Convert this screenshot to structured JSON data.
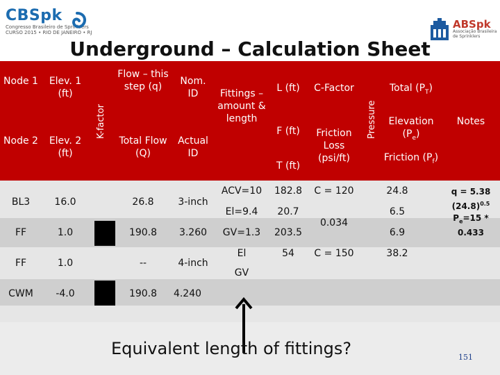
{
  "logos": {
    "left": {
      "brand": "CBSpk",
      "sub1": "Congresso Brasileiro de Sprinklers",
      "sub2": "CURSO 2015 • RIO DE JANEIRO • RJ"
    },
    "right": {
      "brand": "ABSpk",
      "sub": "Associação Brasileira de Sprinklers"
    }
  },
  "title": "Underground – Calculation Sheet",
  "header": {
    "node1": "Node 1",
    "elev1": "Elev. 1 (ft)",
    "node2": "Node 2",
    "elev2": "Elev. 2 (ft)",
    "kfactor": "K-factor",
    "flow_step": "Flow – this step (q)",
    "total_flow": "Total Flow (Q)",
    "nom_id": "Nom. ID",
    "actual_id": "Actual ID",
    "fittings": "Fittings – amount & length",
    "l_ft": "L (ft)",
    "f_ft": "F (ft)",
    "t_ft": "T (ft)",
    "c_factor": "C-Factor",
    "friction_loss": "Friction Loss (psi/ft)",
    "pressure": "Pressure",
    "total_pt": "Total (P",
    "total_pt_sub": "T",
    "elevation_pe": "Elevation (P",
    "elevation_pe_sub": "e",
    "friction_pf": "Friction (P",
    "friction_pf_sub": "f",
    "notes": "Notes"
  },
  "rows": {
    "r1": {
      "node": "BL3",
      "elev": "16.0",
      "flow": "26.8",
      "nom": "3-inch",
      "fit1": "ACV=10",
      "fit2": "El=9.4",
      "l": "182.8",
      "f": "20.7",
      "c": "C = 120",
      "pt": "24.8",
      "pe": "6.5"
    },
    "r2": {
      "node": "FF",
      "elev": "1.0",
      "total_flow": "190.8",
      "actual": "3.260",
      "fit": "GV=1.3",
      "t": "203.5",
      "fl": "0.034",
      "pf": "6.9"
    },
    "r3": {
      "node": "FF",
      "elev": "1.0",
      "flow": "--",
      "nom": "4-inch",
      "fit1": "El",
      "fit2": "GV",
      "l": "54",
      "c": "C = 150",
      "pt": "38.2"
    },
    "r4": {
      "node": "CWM",
      "elev": "-4.0",
      "total_flow": "190.8",
      "actual": "4.240"
    }
  },
  "notes": {
    "line1": "q = 5.38",
    "line2a": "(24.8)",
    "line2sup": "0.5",
    "line3a": "P",
    "line3sub": "e",
    "line3b": "=15 *",
    "line4": "0.433"
  },
  "caption": "Equivalent length of fittings?",
  "page_number": "151",
  "colors": {
    "header": "#c00000",
    "row_odd": "#e6e6e6",
    "row_even": "#cfcfcf",
    "brand_blue": "#1c6cb0"
  }
}
